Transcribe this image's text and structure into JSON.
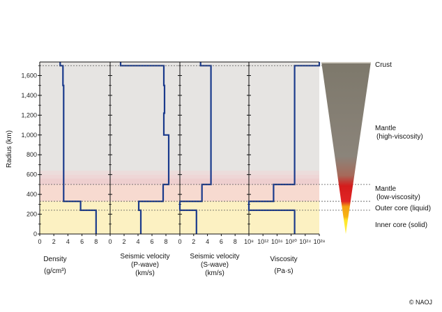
{
  "chart_data": {
    "type": "line",
    "ylabel": "Radius (km)",
    "ylim": [
      0,
      1737
    ],
    "y_ticks": [
      "0",
      "200",
      "400",
      "600",
      "800",
      "1,000",
      "1,200",
      "1,400",
      "1,600"
    ],
    "y_tick_values": [
      0,
      200,
      400,
      600,
      800,
      1000,
      1200,
      1400,
      1600
    ],
    "boundaries": [
      {
        "name": "crust",
        "radius": 1700
      },
      {
        "name": "mantle-low",
        "radius": 500
      },
      {
        "name": "outer-core",
        "radius": 330
      },
      {
        "name": "inner-core",
        "radius": 240
      }
    ],
    "zones": [
      {
        "from": 0,
        "to": 330,
        "color": "#fcf1c2"
      },
      {
        "from": 330,
        "to": 500,
        "color": "#f7dad0"
      },
      {
        "from": 500,
        "to": 600,
        "color": "#eecfcf"
      },
      {
        "from": 600,
        "to": 1737,
        "color": "#e6e4e2"
      }
    ],
    "panels": [
      {
        "title": "Density",
        "unit": "(g/cm³)",
        "xlim": [
          0,
          10
        ],
        "x_ticks": [
          "0",
          "2",
          "4",
          "6",
          "8"
        ],
        "x_tick_values": [
          0,
          2,
          4,
          6,
          8
        ],
        "profile": [
          [
            8.0,
            0
          ],
          [
            8.0,
            240
          ],
          [
            5.8,
            240
          ],
          [
            5.8,
            330
          ],
          [
            3.4,
            330
          ],
          [
            3.4,
            1500
          ],
          [
            3.3,
            1500
          ],
          [
            3.3,
            1700
          ],
          [
            2.9,
            1700
          ],
          [
            2.9,
            1737
          ]
        ]
      },
      {
        "title": "Seismic velocity",
        "subtitle": "(P-wave)",
        "unit": "(km/s)",
        "xlim": [
          0,
          10
        ],
        "x_ticks": [
          "0",
          "2",
          "4",
          "6",
          "8"
        ],
        "x_tick_values": [
          0,
          2,
          4,
          6,
          8
        ],
        "profile": [
          [
            4.4,
            0
          ],
          [
            4.4,
            240
          ],
          [
            4.1,
            240
          ],
          [
            4.1,
            330
          ],
          [
            7.6,
            330
          ],
          [
            7.6,
            500
          ],
          [
            8.4,
            500
          ],
          [
            8.4,
            1000
          ],
          [
            7.7,
            1000
          ],
          [
            7.7,
            1220
          ],
          [
            7.8,
            1220
          ],
          [
            7.8,
            1500
          ],
          [
            7.7,
            1500
          ],
          [
            7.7,
            1700
          ],
          [
            1.5,
            1700
          ],
          [
            1.5,
            1737
          ]
        ]
      },
      {
        "title": "Seismic velocity",
        "subtitle": "(S-wave)",
        "unit": "(km/s)",
        "xlim": [
          0,
          10
        ],
        "x_ticks": [
          "0",
          "2",
          "4",
          "6",
          "8"
        ],
        "x_tick_values": [
          0,
          2,
          4,
          6,
          8
        ],
        "profile": [
          [
            2.4,
            0
          ],
          [
            2.4,
            240
          ],
          [
            0.0,
            240
          ],
          [
            0.0,
            330
          ],
          [
            3.2,
            330
          ],
          [
            3.2,
            500
          ],
          [
            4.5,
            500
          ],
          [
            4.5,
            1700
          ],
          [
            3.0,
            1700
          ],
          [
            3.0,
            1737
          ]
        ]
      },
      {
        "title": "Viscosity",
        "unit": "(Pa·s)",
        "xlim": [
          8,
          28
        ],
        "x_ticks": [
          "10⁸",
          "10¹²",
          "10¹⁶",
          "10²⁰",
          "10²⁴",
          "10²⁸"
        ],
        "x_tick_values": [
          8,
          12,
          16,
          20,
          24,
          28
        ],
        "profile": [
          [
            21,
            0
          ],
          [
            21,
            240
          ],
          [
            8,
            240
          ],
          [
            8,
            330
          ],
          [
            15,
            330
          ],
          [
            15,
            500
          ],
          [
            21,
            500
          ],
          [
            21,
            1700
          ],
          [
            28,
            1700
          ],
          [
            28,
            1737
          ]
        ]
      }
    ]
  },
  "layers": [
    {
      "label": "Crust",
      "radius": 1700
    },
    {
      "label": "Mantle",
      "sublabel": "(high-viscosity)",
      "radius": 1000
    },
    {
      "label": "Mantle",
      "sublabel": "(low-viscosity)",
      "radius": 420
    },
    {
      "label": "Outer core (liquid)",
      "radius": 285
    },
    {
      "label": "Inner core (solid)",
      "radius": 110
    }
  ],
  "colors": {
    "line": "#1a3a8c",
    "mantle_high": "#8a8579",
    "mantle_low": "#d81e1e",
    "outer_core": "#f09a10",
    "inner_core": "#ffe628"
  },
  "copyright": "© NAOJ"
}
